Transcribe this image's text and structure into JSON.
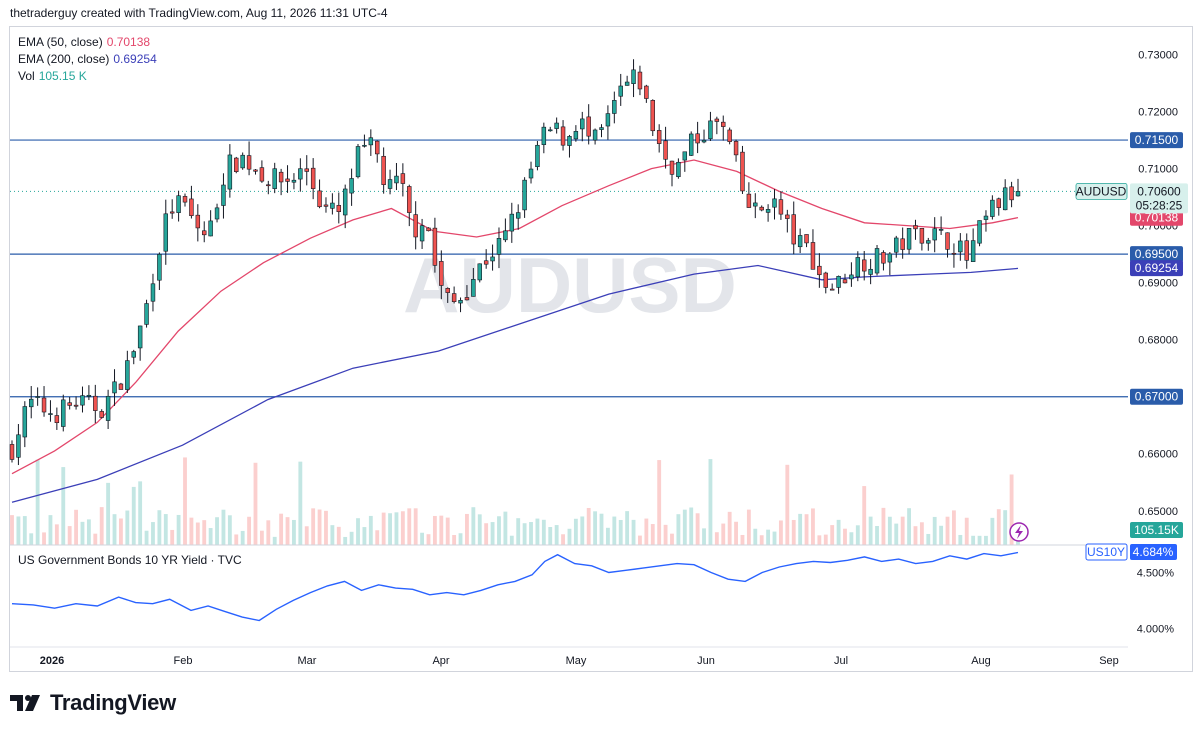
{
  "header": {
    "text": "thetraderguy created with TradingView.com, Aug 11, 2026 11:31 UTC-4"
  },
  "legend": {
    "ema50": {
      "label": "EMA (50, close)",
      "value": "0.70138",
      "color": "#e3476b"
    },
    "ema200": {
      "label": "EMA (200, close)",
      "value": "0.69254",
      "color": "#3b3fb8"
    },
    "vol": {
      "label": "Vol",
      "value": "105.15 K",
      "color": "#26a69a"
    }
  },
  "watermark": "AUDUSD",
  "symbol_tag": {
    "name": "AUDUSD",
    "price": "0.70600",
    "countdown": "05:28:25"
  },
  "indicator": {
    "title": "US Government Bonds 10 YR Yield · TVC",
    "tag": "US10Y",
    "value": "4.684%",
    "axis_labels": [
      "4.500%",
      "4.000%"
    ]
  },
  "brand": {
    "name": "TradingView",
    "icon": "tradingview-logo-icon"
  },
  "lightning_icon": "lightning-icon",
  "colors": {
    "up": "#26a69a",
    "down": "#ef5350",
    "level": "#2a5caa",
    "ema50": "#e3476b",
    "ema200": "#3b3fb8"
  },
  "chart_data": [
    {
      "type": "candlestick",
      "symbol": "AUDUSD",
      "x_labels": [
        "2026",
        "Feb",
        "Mar",
        "Apr",
        "May",
        "Jun",
        "Jul",
        "Aug",
        "Sep"
      ],
      "y_ticks": [
        "0.73000",
        "0.72000",
        "0.71000",
        "0.70000",
        "0.69000",
        "0.68000",
        "0.66000",
        "0.65000"
      ],
      "ylim": [
        0.644,
        0.735
      ],
      "horizontal_levels": [
        {
          "value": 0.715,
          "label": "0.71500"
        },
        {
          "value": 0.695,
          "label": "0.69500"
        },
        {
          "value": 0.67,
          "label": "0.67000"
        }
      ],
      "last_price": 0.706,
      "ema_labels": [
        {
          "value": 0.70138,
          "label": "0.70138",
          "color": "#e3476b"
        },
        {
          "value": 0.69254,
          "label": "0.69254",
          "color": "#3b3fb8"
        }
      ],
      "volume_label": "105.15K",
      "close_path": [
        [
          0,
          0.661
        ],
        [
          8,
          0.669
        ],
        [
          20,
          0.667
        ],
        [
          30,
          0.669
        ],
        [
          42,
          0.668
        ],
        [
          48,
          0.671
        ],
        [
          55,
          0.676
        ],
        [
          62,
          0.684
        ],
        [
          68,
          0.695
        ],
        [
          74,
          0.703
        ],
        [
          80,
          0.704
        ],
        [
          86,
          0.7
        ],
        [
          92,
          0.698
        ],
        [
          100,
          0.71
        ],
        [
          108,
          0.712
        ],
        [
          114,
          0.71
        ],
        [
          122,
          0.708
        ],
        [
          130,
          0.708
        ],
        [
          138,
          0.71
        ],
        [
          146,
          0.703
        ],
        [
          154,
          0.702
        ],
        [
          162,
          0.712
        ],
        [
          170,
          0.714
        ],
        [
          176,
          0.706
        ],
        [
          182,
          0.708
        ],
        [
          188,
          0.699
        ],
        [
          194,
          0.702
        ],
        [
          200,
          0.69
        ],
        [
          206,
          0.686
        ],
        [
          212,
          0.688
        ],
        [
          218,
          0.692
        ],
        [
          224,
          0.695
        ],
        [
          230,
          0.697
        ],
        [
          236,
          0.702
        ],
        [
          242,
          0.708
        ],
        [
          248,
          0.715
        ],
        [
          254,
          0.717
        ],
        [
          260,
          0.715
        ],
        [
          266,
          0.719
        ],
        [
          272,
          0.714
        ],
        [
          278,
          0.717
        ],
        [
          286,
          0.724
        ],
        [
          294,
          0.726
        ],
        [
          300,
          0.718
        ],
        [
          306,
          0.712
        ],
        [
          312,
          0.71
        ],
        [
          318,
          0.714
        ],
        [
          326,
          0.717
        ],
        [
          332,
          0.718
        ],
        [
          338,
          0.713
        ],
        [
          344,
          0.704
        ],
        [
          350,
          0.702
        ],
        [
          356,
          0.705
        ],
        [
          362,
          0.701
        ],
        [
          368,
          0.697
        ],
        [
          374,
          0.696
        ],
        [
          380,
          0.69
        ],
        [
          386,
          0.689
        ],
        [
          392,
          0.692
        ],
        [
          398,
          0.694
        ],
        [
          404,
          0.694
        ],
        [
          412,
          0.695
        ],
        [
          420,
          0.698
        ],
        [
          428,
          0.699
        ],
        [
          436,
          0.698
        ],
        [
          442,
          0.697
        ],
        [
          448,
          0.694
        ],
        [
          454,
          0.699
        ],
        [
          460,
          0.703
        ],
        [
          466,
          0.705
        ],
        [
          472,
          0.706
        ]
      ],
      "ema50_path": [
        [
          0,
          0.6565
        ],
        [
          20,
          0.6605
        ],
        [
          40,
          0.6655
        ],
        [
          58,
          0.6725
        ],
        [
          78,
          0.6815
        ],
        [
          98,
          0.6885
        ],
        [
          118,
          0.6935
        ],
        [
          140,
          0.6978
        ],
        [
          160,
          0.701
        ],
        [
          178,
          0.703
        ],
        [
          198,
          0.699
        ],
        [
          218,
          0.698
        ],
        [
          238,
          0.6995
        ],
        [
          258,
          0.7035
        ],
        [
          280,
          0.707
        ],
        [
          300,
          0.71
        ],
        [
          320,
          0.7115
        ],
        [
          340,
          0.7095
        ],
        [
          360,
          0.706
        ],
        [
          380,
          0.703
        ],
        [
          400,
          0.7005
        ],
        [
          420,
          0.7
        ],
        [
          440,
          0.6995
        ],
        [
          460,
          0.7005
        ],
        [
          472,
          0.7014
        ]
      ],
      "ema200_path": [
        [
          0,
          0.6515
        ],
        [
          40,
          0.6555
        ],
        [
          80,
          0.6615
        ],
        [
          120,
          0.6695
        ],
        [
          160,
          0.675
        ],
        [
          200,
          0.678
        ],
        [
          240,
          0.683
        ],
        [
          280,
          0.688
        ],
        [
          320,
          0.6915
        ],
        [
          350,
          0.693
        ],
        [
          380,
          0.6905
        ],
        [
          400,
          0.691
        ],
        [
          430,
          0.6915
        ],
        [
          450,
          0.6918
        ],
        [
          472,
          0.6925
        ]
      ]
    },
    {
      "type": "line",
      "name": "US Government Bonds 10 YR Yield · TVC",
      "y_ticks": [
        "4.500%",
        "4.000%"
      ],
      "ylim": [
        3.85,
        4.72
      ],
      "last_value": 4.684,
      "series_path": [
        [
          0,
          4.22
        ],
        [
          10,
          4.21
        ],
        [
          20,
          4.18
        ],
        [
          30,
          4.22
        ],
        [
          40,
          4.2
        ],
        [
          50,
          4.28
        ],
        [
          58,
          4.23
        ],
        [
          66,
          4.22
        ],
        [
          74,
          4.26
        ],
        [
          84,
          4.16
        ],
        [
          92,
          4.2
        ],
        [
          100,
          4.15
        ],
        [
          108,
          4.1
        ],
        [
          116,
          4.07
        ],
        [
          124,
          4.17
        ],
        [
          132,
          4.25
        ],
        [
          140,
          4.32
        ],
        [
          148,
          4.38
        ],
        [
          156,
          4.42
        ],
        [
          164,
          4.34
        ],
        [
          172,
          4.39
        ],
        [
          180,
          4.36
        ],
        [
          188,
          4.35
        ],
        [
          196,
          4.3
        ],
        [
          204,
          4.32
        ],
        [
          212,
          4.3
        ],
        [
          220,
          4.34
        ],
        [
          228,
          4.39
        ],
        [
          236,
          4.42
        ],
        [
          244,
          4.48
        ],
        [
          250,
          4.6
        ],
        [
          256,
          4.66
        ],
        [
          264,
          4.58
        ],
        [
          272,
          4.56
        ],
        [
          280,
          4.5
        ],
        [
          288,
          4.52
        ],
        [
          296,
          4.54
        ],
        [
          304,
          4.56
        ],
        [
          312,
          4.58
        ],
        [
          320,
          4.57
        ],
        [
          328,
          4.5
        ],
        [
          336,
          4.44
        ],
        [
          344,
          4.42
        ],
        [
          352,
          4.5
        ],
        [
          360,
          4.55
        ],
        [
          368,
          4.58
        ],
        [
          376,
          4.6
        ],
        [
          384,
          4.59
        ],
        [
          392,
          4.61
        ],
        [
          400,
          4.64
        ],
        [
          408,
          4.6
        ],
        [
          416,
          4.62
        ],
        [
          424,
          4.58
        ],
        [
          432,
          4.6
        ],
        [
          440,
          4.65
        ],
        [
          448,
          4.62
        ],
        [
          456,
          4.67
        ],
        [
          464,
          4.65
        ],
        [
          472,
          4.68
        ]
      ]
    }
  ]
}
